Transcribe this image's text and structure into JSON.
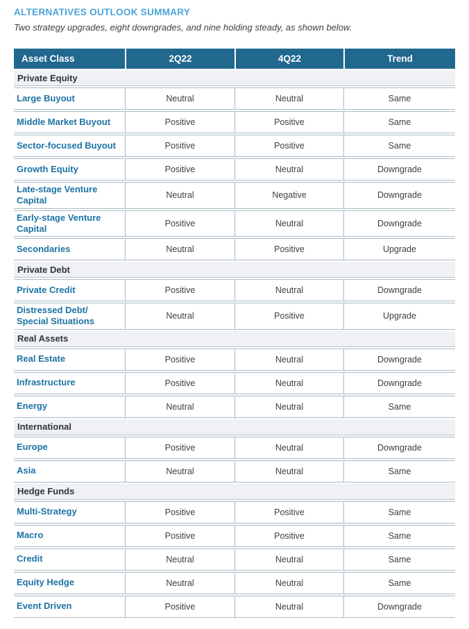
{
  "page": {
    "title": "ALTERNATIVES OUTLOOK SUMMARY",
    "subtitle": "Two strategy upgrades, eight downgrades, and nine holding steady, as shown below."
  },
  "colors": {
    "title_blue": "#4aa4d8",
    "header_bg": "#21688f",
    "header_text": "#ffffff",
    "asset_label_blue": "#1c73a5",
    "section_bg": "#eff1f4",
    "body_text": "#3c4046",
    "border": "#a9bac2"
  },
  "table": {
    "columns": [
      "Asset Class",
      "2Q22",
      "4Q22",
      "Trend"
    ],
    "sections": [
      {
        "name": "Private Equity",
        "rows": [
          {
            "asset": "Large Buyout",
            "q2": "Neutral",
            "q4": "Neutral",
            "trend": "Same"
          },
          {
            "asset": "Middle Market Buyout",
            "q2": "Positive",
            "q4": "Positive",
            "trend": "Same"
          },
          {
            "asset": "Sector-focused Buyout",
            "q2": "Positive",
            "q4": "Positive",
            "trend": "Same"
          },
          {
            "asset": "Growth Equity",
            "q2": "Positive",
            "q4": "Neutral",
            "trend": "Downgrade"
          },
          {
            "asset": "Late-stage Venture Capital",
            "q2": "Neutral",
            "q4": "Negative",
            "trend": "Downgrade"
          },
          {
            "asset": "Early-stage Venture Capital",
            "q2": "Positive",
            "q4": "Neutral",
            "trend": "Downgrade"
          },
          {
            "asset": "Secondaries",
            "q2": "Neutral",
            "q4": "Positive",
            "trend": "Upgrade"
          }
        ]
      },
      {
        "name": "Private Debt",
        "rows": [
          {
            "asset": "Private Credit",
            "q2": "Positive",
            "q4": "Neutral",
            "trend": "Downgrade"
          },
          {
            "asset": "Distressed Debt/\nSpecial Situations",
            "q2": "Neutral",
            "q4": "Positive",
            "trend": "Upgrade"
          }
        ]
      },
      {
        "name": "Real Assets",
        "rows": [
          {
            "asset": "Real Estate",
            "q2": "Positive",
            "q4": "Neutral",
            "trend": "Downgrade"
          },
          {
            "asset": "Infrastructure",
            "q2": "Positive",
            "q4": "Neutral",
            "trend": "Downgrade"
          },
          {
            "asset": "Energy",
            "q2": "Neutral",
            "q4": "Neutral",
            "trend": "Same"
          }
        ]
      },
      {
        "name": "International",
        "rows": [
          {
            "asset": "Europe",
            "q2": "Positive",
            "q4": "Neutral",
            "trend": "Downgrade"
          },
          {
            "asset": "Asia",
            "q2": "Neutral",
            "q4": "Neutral",
            "trend": "Same"
          }
        ]
      },
      {
        "name": "Hedge Funds",
        "rows": [
          {
            "asset": "Multi-Strategy",
            "q2": "Positive",
            "q4": "Positive",
            "trend": "Same"
          },
          {
            "asset": "Macro",
            "q2": "Positive",
            "q4": "Positive",
            "trend": "Same"
          },
          {
            "asset": "Credit",
            "q2": "Neutral",
            "q4": "Neutral",
            "trend": "Same"
          },
          {
            "asset": "Equity Hedge",
            "q2": "Neutral",
            "q4": "Neutral",
            "trend": "Same"
          },
          {
            "asset": "Event Driven",
            "q2": "Positive",
            "q4": "Neutral",
            "trend": "Downgrade"
          }
        ]
      }
    ]
  }
}
